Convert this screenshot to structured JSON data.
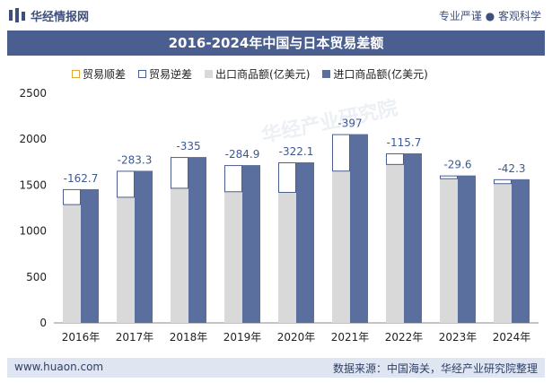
{
  "header": {
    "brand": "华经情报网",
    "slogan": "专业严谨 ● 客观科学"
  },
  "watermark": "华经产业研究院",
  "legend": {
    "surplus": "贸易顺差",
    "deficit": "贸易逆差",
    "export": "出口商品额(亿美元)",
    "import": "进口商品额(亿美元)"
  },
  "footer": {
    "url": "www.huaon.com",
    "source": "数据来源：中国海关，华经产业研究院整理"
  },
  "colors": {
    "export": "#d9d9d9",
    "import": "#5b6f9e",
    "deficit_border": "#4a5e8f",
    "label": "#3d5a8f"
  },
  "chart_data": {
    "type": "bar",
    "title": "2016-2024年中国与日本贸易差额",
    "categories": [
      "2016年",
      "2017年",
      "2018年",
      "2019年",
      "2020年",
      "2021年",
      "2022年",
      "2023年",
      "2024年"
    ],
    "series": [
      {
        "name": "出口商品额(亿美元)",
        "values": [
          1293,
          1373,
          1471,
          1433,
          1426,
          1658,
          1730,
          1575,
          1521
        ]
      },
      {
        "name": "进口商品额(亿美元)",
        "values": [
          1456,
          1656,
          1806,
          1718,
          1748,
          2055,
          1846,
          1605,
          1564
        ]
      }
    ],
    "trade_balance": [
      -162.7,
      -283.3,
      -335,
      -284.9,
      -322.1,
      -397,
      -115.7,
      -29.6,
      -42.3
    ],
    "trade_balance_labels": [
      "-162.7",
      "-283.3",
      "-335",
      "-284.9",
      "-322.1",
      "-397",
      "-115.7",
      "-29.6",
      "-42.3"
    ],
    "ylim": [
      0,
      2500
    ],
    "yticks": [
      "0",
      "500",
      "1000",
      "1500",
      "2000",
      "2500"
    ],
    "ytick_values": [
      0,
      500,
      1000,
      1500,
      2000,
      2500
    ],
    "xlabel": "",
    "ylabel": ""
  }
}
